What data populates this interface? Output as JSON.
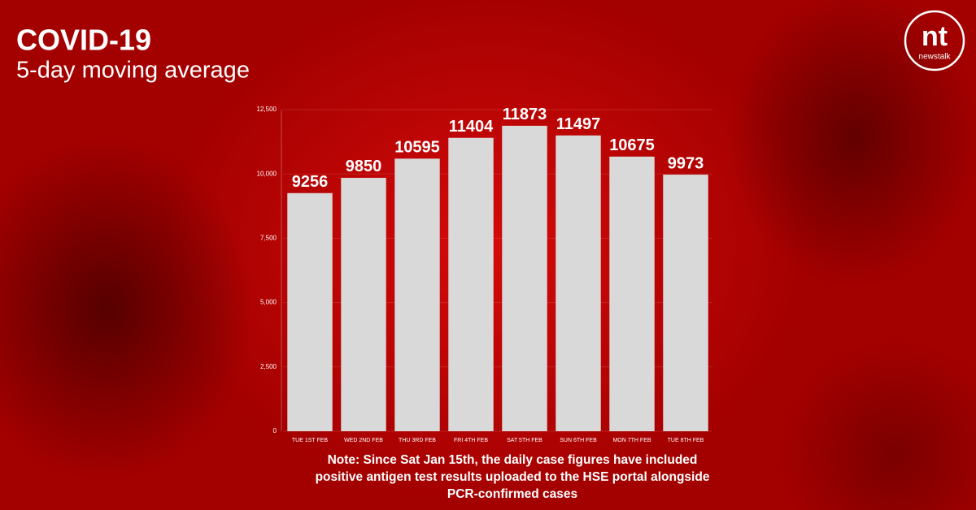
{
  "chart_data": {
    "type": "bar",
    "title": "COVID-19",
    "subtitle": "5-day moving average",
    "categories": [
      "TUE 1ST FEB",
      "WED 2ND FEB",
      "THU 3RD FEB",
      "FRI 4TH FEB",
      "SAT 5TH FEB",
      "SUN 6TH FEB",
      "MON 7TH FEB",
      "TUE 8TH FEB"
    ],
    "values": [
      9256,
      9850,
      10595,
      11404,
      11873,
      11497,
      10675,
      9973
    ],
    "color": "#d9d9d9",
    "ylim": [
      0,
      12500
    ],
    "yticks": [
      0,
      {
        "value": 2500,
        "label": "2,500"
      },
      {
        "value": 5000,
        "label": "5,000"
      },
      {
        "value": 7500,
        "label": "7,500"
      },
      {
        "value": 10000,
        "label": "10,000"
      },
      {
        "value": 12500,
        "label": "12,500"
      }
    ],
    "grid": true,
    "annotation": "Note: Since Sat Jan 15th, the daily case figures have included positive antigen test results uploaded to the HSE portal alongside PCR-confirmed cases"
  },
  "logo": {
    "mark": "nt",
    "wordmark": "newstalk"
  }
}
